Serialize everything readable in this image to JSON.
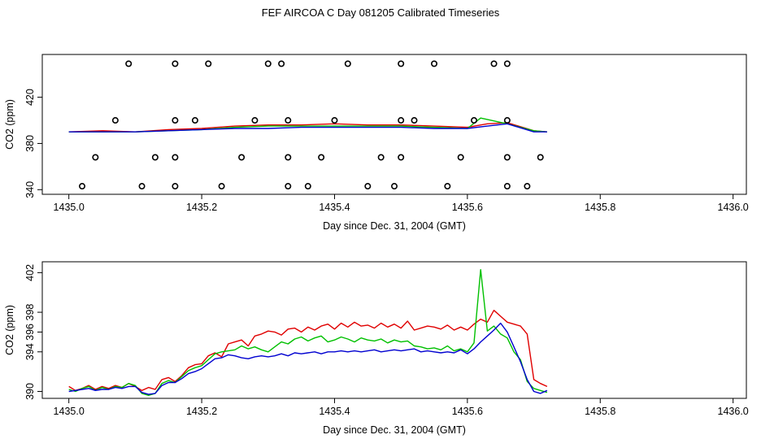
{
  "title": "FEF AIRCOA C  Day 081205  Calibrated Timeseries",
  "colors": {
    "red": "#e00000",
    "green": "#00c000",
    "blue": "#0000d0",
    "marker": "#000000"
  },
  "chart_data": [
    {
      "type": "scatter+line",
      "xlabel": "Day since Dec. 31, 2004 (GMT)",
      "ylabel": "CO2 (ppm)",
      "xlim": [
        1434.96,
        1436.02
      ],
      "ylim": [
        336,
        457
      ],
      "xticks": [
        "1435.0",
        "1435.2",
        "1435.4",
        "1435.6",
        "1435.8",
        "1436.0"
      ],
      "yticks": [
        "340",
        "380",
        "420"
      ],
      "markers": {
        "x": [
          1435.09,
          1435.16,
          1435.21,
          1435.3,
          1435.32,
          1435.42,
          1435.5,
          1435.55,
          1435.64,
          1435.66,
          1435.07,
          1435.16,
          1435.19,
          1435.28,
          1435.33,
          1435.4,
          1435.5,
          1435.52,
          1435.61,
          1435.66,
          1435.04,
          1435.13,
          1435.16,
          1435.26,
          1435.33,
          1435.38,
          1435.47,
          1435.5,
          1435.59,
          1435.66,
          1435.71,
          1435.02,
          1435.11,
          1435.16,
          1435.23,
          1435.33,
          1435.36,
          1435.45,
          1435.49,
          1435.57,
          1435.66,
          1435.69
        ],
        "y": [
          449,
          449,
          449,
          449,
          449,
          449,
          449,
          449,
          449,
          449,
          400,
          400,
          400,
          400,
          400,
          400,
          400,
          400,
          400,
          400,
          368,
          368,
          368,
          368,
          368,
          368,
          368,
          368,
          368,
          368,
          368,
          343,
          343,
          343,
          343,
          343,
          343,
          343,
          343,
          343,
          343,
          343
        ]
      },
      "series": [
        {
          "name": "red",
          "color": "#e00000",
          "x": [
            1435.0,
            1435.05,
            1435.1,
            1435.15,
            1435.2,
            1435.25,
            1435.3,
            1435.35,
            1435.4,
            1435.45,
            1435.5,
            1435.55,
            1435.6,
            1435.63,
            1435.66,
            1435.7,
            1435.72
          ],
          "values": [
            390,
            391,
            390,
            392,
            393,
            395,
            396,
            396,
            397,
            396,
            396,
            395,
            394,
            397,
            398,
            391,
            390
          ]
        },
        {
          "name": "green",
          "color": "#00c000",
          "x": [
            1435.0,
            1435.05,
            1435.1,
            1435.15,
            1435.2,
            1435.25,
            1435.3,
            1435.35,
            1435.4,
            1435.45,
            1435.5,
            1435.55,
            1435.6,
            1435.62,
            1435.66,
            1435.7,
            1435.72
          ],
          "values": [
            390,
            390,
            390,
            391,
            392,
            394,
            395,
            395,
            395,
            395,
            395,
            394,
            393,
            402,
            397,
            391,
            390
          ]
        },
        {
          "name": "blue",
          "color": "#0000d0",
          "x": [
            1435.0,
            1435.05,
            1435.1,
            1435.15,
            1435.2,
            1435.25,
            1435.3,
            1435.35,
            1435.4,
            1435.45,
            1435.5,
            1435.55,
            1435.6,
            1435.63,
            1435.66,
            1435.7,
            1435.72
          ],
          "values": [
            390,
            390,
            390,
            391,
            392,
            393,
            393,
            394,
            394,
            394,
            394,
            393,
            393,
            395,
            397,
            390,
            390
          ]
        }
      ]
    },
    {
      "type": "line",
      "xlabel": "Day since Dec. 31, 2004 (GMT)",
      "ylabel": "CO2 (ppm)",
      "xlim": [
        1434.96,
        1436.02
      ],
      "ylim": [
        389.3,
        403.1
      ],
      "xticks": [
        "1435.0",
        "1435.2",
        "1435.4",
        "1435.6",
        "1435.8",
        "1436.0"
      ],
      "yticks": [
        "390",
        "394",
        "396",
        "398",
        "402"
      ],
      "ytick_values": [
        390,
        394,
        396,
        398,
        402
      ],
      "series": [
        {
          "name": "red",
          "color": "#e00000",
          "x": [
            1435.0,
            1435.01,
            1435.02,
            1435.03,
            1435.04,
            1435.05,
            1435.06,
            1435.07,
            1435.08,
            1435.09,
            1435.1,
            1435.11,
            1435.12,
            1435.13,
            1435.14,
            1435.15,
            1435.16,
            1435.17,
            1435.18,
            1435.19,
            1435.2,
            1435.21,
            1435.22,
            1435.23,
            1435.24,
            1435.25,
            1435.26,
            1435.27,
            1435.28,
            1435.29,
            1435.3,
            1435.31,
            1435.32,
            1435.33,
            1435.34,
            1435.35,
            1435.36,
            1435.37,
            1435.38,
            1435.39,
            1435.4,
            1435.41,
            1435.42,
            1435.43,
            1435.44,
            1435.45,
            1435.46,
            1435.47,
            1435.48,
            1435.49,
            1435.5,
            1435.51,
            1435.52,
            1435.53,
            1435.54,
            1435.55,
            1435.56,
            1435.57,
            1435.58,
            1435.59,
            1435.6,
            1435.61,
            1435.62,
            1435.63,
            1435.64,
            1435.65,
            1435.66,
            1435.67,
            1435.68,
            1435.69,
            1435.7,
            1435.71,
            1435.72
          ],
          "values": [
            390.5,
            390.1,
            390.3,
            390.6,
            390.2,
            390.5,
            390.3,
            390.6,
            390.4,
            390.8,
            390.5,
            390.1,
            390.4,
            390.2,
            391.2,
            391.4,
            391.0,
            391.6,
            392.4,
            392.7,
            392.8,
            393.6,
            393.9,
            393.5,
            394.8,
            395.0,
            395.2,
            394.6,
            395.6,
            395.8,
            396.1,
            396.0,
            395.7,
            396.3,
            396.4,
            396.0,
            396.5,
            396.2,
            396.6,
            396.8,
            396.3,
            396.9,
            396.5,
            397.0,
            396.6,
            396.7,
            396.4,
            396.9,
            396.5,
            396.8,
            396.4,
            397.1,
            396.2,
            396.4,
            396.6,
            396.5,
            396.3,
            396.7,
            396.2,
            396.5,
            396.2,
            396.8,
            397.3,
            397.0,
            398.2,
            397.6,
            397.0,
            396.8,
            396.6,
            395.8,
            391.2,
            390.8,
            390.5
          ]
        },
        {
          "name": "green",
          "color": "#00c000",
          "x": [
            1435.0,
            1435.01,
            1435.02,
            1435.03,
            1435.04,
            1435.05,
            1435.06,
            1435.07,
            1435.08,
            1435.09,
            1435.1,
            1435.11,
            1435.12,
            1435.13,
            1435.14,
            1435.15,
            1435.16,
            1435.17,
            1435.18,
            1435.19,
            1435.2,
            1435.21,
            1435.22,
            1435.23,
            1435.24,
            1435.25,
            1435.26,
            1435.27,
            1435.28,
            1435.29,
            1435.3,
            1435.31,
            1435.32,
            1435.33,
            1435.34,
            1435.35,
            1435.36,
            1435.37,
            1435.38,
            1435.39,
            1435.4,
            1435.41,
            1435.42,
            1435.43,
            1435.44,
            1435.45,
            1435.46,
            1435.47,
            1435.48,
            1435.49,
            1435.5,
            1435.51,
            1435.52,
            1435.53,
            1435.54,
            1435.55,
            1435.56,
            1435.57,
            1435.58,
            1435.59,
            1435.6,
            1435.61,
            1435.62,
            1435.63,
            1435.64,
            1435.65,
            1435.66,
            1435.67,
            1435.68,
            1435.69,
            1435.7,
            1435.71,
            1435.72
          ],
          "values": [
            390.2,
            390.0,
            390.3,
            390.5,
            390.1,
            390.4,
            390.2,
            390.5,
            390.4,
            390.8,
            390.6,
            389.8,
            389.6,
            389.8,
            390.8,
            391.1,
            390.9,
            391.5,
            392.1,
            392.4,
            392.6,
            393.2,
            393.8,
            394.0,
            394.1,
            394.2,
            394.6,
            394.3,
            394.5,
            394.2,
            394.0,
            394.5,
            395.0,
            394.8,
            395.3,
            395.5,
            395.1,
            395.4,
            395.6,
            395.0,
            395.2,
            395.5,
            395.3,
            395.0,
            395.4,
            395.2,
            395.1,
            395.3,
            394.9,
            395.2,
            395.0,
            395.1,
            394.6,
            394.5,
            394.3,
            394.4,
            394.2,
            394.6,
            394.1,
            394.3,
            394.0,
            394.9,
            402.3,
            396.1,
            396.6,
            395.8,
            395.4,
            394.0,
            393.2,
            391.0,
            390.3,
            390.1,
            389.9
          ]
        },
        {
          "name": "blue",
          "color": "#0000d0",
          "x": [
            1435.0,
            1435.01,
            1435.02,
            1435.03,
            1435.04,
            1435.05,
            1435.06,
            1435.07,
            1435.08,
            1435.09,
            1435.1,
            1435.11,
            1435.12,
            1435.13,
            1435.14,
            1435.15,
            1435.16,
            1435.17,
            1435.18,
            1435.19,
            1435.2,
            1435.21,
            1435.22,
            1435.23,
            1435.24,
            1435.25,
            1435.26,
            1435.27,
            1435.28,
            1435.29,
            1435.3,
            1435.31,
            1435.32,
            1435.33,
            1435.34,
            1435.35,
            1435.36,
            1435.37,
            1435.38,
            1435.39,
            1435.4,
            1435.41,
            1435.42,
            1435.43,
            1435.44,
            1435.45,
            1435.46,
            1435.47,
            1435.48,
            1435.49,
            1435.5,
            1435.51,
            1435.52,
            1435.53,
            1435.54,
            1435.55,
            1435.56,
            1435.57,
            1435.58,
            1435.59,
            1435.6,
            1435.61,
            1435.62,
            1435.63,
            1435.64,
            1435.65,
            1435.66,
            1435.67,
            1435.68,
            1435.69,
            1435.7,
            1435.71,
            1435.72
          ],
          "values": [
            390.0,
            390.1,
            390.2,
            390.3,
            390.1,
            390.2,
            390.2,
            390.4,
            390.3,
            390.5,
            390.5,
            389.9,
            389.7,
            389.8,
            390.6,
            390.9,
            390.9,
            391.3,
            391.8,
            392.0,
            392.3,
            392.8,
            393.3,
            393.4,
            393.7,
            393.6,
            393.4,
            393.3,
            393.5,
            393.6,
            393.5,
            393.6,
            393.8,
            393.6,
            393.9,
            393.8,
            393.9,
            394.0,
            393.8,
            394.0,
            394.0,
            394.1,
            394.0,
            394.1,
            394.0,
            394.1,
            394.2,
            394.0,
            394.1,
            394.2,
            394.1,
            394.2,
            394.3,
            394.0,
            394.1,
            394.0,
            393.9,
            394.0,
            393.9,
            394.2,
            393.8,
            394.3,
            395.0,
            395.6,
            396.2,
            396.9,
            396.0,
            394.5,
            393.0,
            391.2,
            390.0,
            389.8,
            390.1
          ]
        }
      ]
    }
  ]
}
